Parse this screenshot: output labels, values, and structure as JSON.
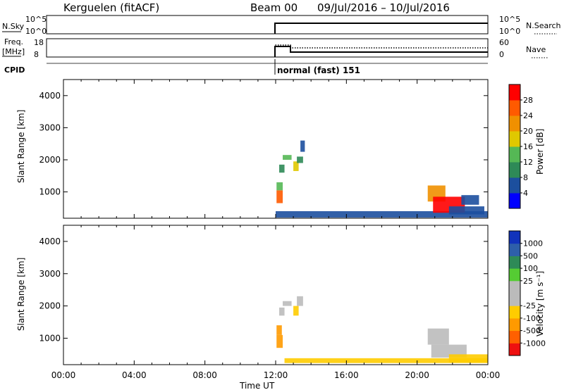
{
  "header": {
    "station": "Kerguelen (fitACF)",
    "beam": "Beam 00",
    "date_range": "09/Jul/2016 – 10/Jul/2016"
  },
  "status_panels": {
    "nsky_label": "N.Sky",
    "nsearch_label": "N.Search",
    "nsky_ticks": [
      "10^5",
      "10^0"
    ],
    "nsearch_ticks": [
      "10^5",
      "10^0"
    ],
    "freq_label": "Freq.",
    "freq_unit": "[MHz]",
    "freq_ticks": [
      "18",
      "8"
    ],
    "nave_label": "Nave",
    "nave_ticks": [
      "60",
      "0"
    ],
    "cpid_label": "CPID",
    "mode_label": "normal (fast) 151"
  },
  "colors": {
    "power_scale": [
      "#0000ff",
      "#1c4f9e",
      "#2e8a57",
      "#55b855",
      "#e0c800",
      "#f09000",
      "#ff5a00",
      "#ff0000"
    ],
    "velocity_scale": [
      "#ee1010",
      "#ff6000",
      "#ff9a00",
      "#ffcc00",
      "#bbbbbb",
      "#bbbbbb",
      "#55cc33",
      "#2e8a57",
      "#2e5faa",
      "#1133bb"
    ]
  },
  "chart_data": [
    {
      "type": "heatmap",
      "quantity": "power",
      "ylabel": "Slant Range [km]",
      "xlabel": "",
      "yticks": [
        "1000",
        "2000",
        "3000",
        "4000"
      ],
      "ylim": [
        180,
        4500
      ],
      "xlim": [
        0,
        24
      ],
      "colorbar_label": "Power [dB]",
      "colorbar_ticks": [
        "4",
        "8",
        "12",
        "16",
        "20",
        "24",
        "28"
      ],
      "colorbar_range": [
        0,
        32
      ],
      "cells": [
        [
          12.05,
          650,
          0.35,
          400,
          26
        ],
        [
          12.05,
          1050,
          0.35,
          250,
          14
        ],
        [
          12.2,
          1600,
          0.3,
          250,
          8
        ],
        [
          12.4,
          2000,
          0.5,
          150,
          12
        ],
        [
          13.0,
          1650,
          0.3,
          300,
          18
        ],
        [
          13.2,
          1900,
          0.35,
          200,
          10
        ],
        [
          13.4,
          2250,
          0.25,
          350,
          6
        ],
        [
          12.0,
          200,
          12.0,
          200,
          6
        ],
        [
          20.6,
          700,
          1.0,
          500,
          20
        ],
        [
          20.9,
          350,
          1.8,
          500,
          28
        ],
        [
          21.8,
          300,
          2.0,
          250,
          6
        ],
        [
          22.5,
          600,
          1.0,
          300,
          4
        ]
      ]
    },
    {
      "type": "heatmap",
      "quantity": "velocity",
      "ylabel": "Slant Range [km]",
      "xlabel": "Time UT",
      "xticks": [
        "00:00",
        "04:00",
        "08:00",
        "12:00",
        "16:00",
        "20:00",
        "00:00"
      ],
      "yticks": [
        "1000",
        "2000",
        "3000",
        "4000"
      ],
      "ylim": [
        180,
        4500
      ],
      "xlim": [
        0,
        24
      ],
      "colorbar_label": "Velocity [m s⁻¹]",
      "colorbar_ticks": [
        "-1000",
        "-500",
        "-100",
        "-25",
        "25",
        "100",
        "500",
        "1000"
      ],
      "cells": [
        [
          12.05,
          700,
          0.35,
          400,
          -400
        ],
        [
          12.05,
          1100,
          0.3,
          300,
          -150
        ],
        [
          12.2,
          1700,
          0.3,
          250,
          0
        ],
        [
          12.4,
          2000,
          0.5,
          150,
          10
        ],
        [
          13.0,
          1700,
          0.3,
          300,
          -60
        ],
        [
          13.2,
          2000,
          0.35,
          300,
          0
        ],
        [
          12.5,
          230,
          11.5,
          150,
          -60
        ],
        [
          20.6,
          800,
          1.2,
          500,
          0
        ],
        [
          20.8,
          400,
          2.0,
          400,
          5
        ],
        [
          21.8,
          250,
          2.2,
          250,
          -80
        ]
      ]
    }
  ]
}
